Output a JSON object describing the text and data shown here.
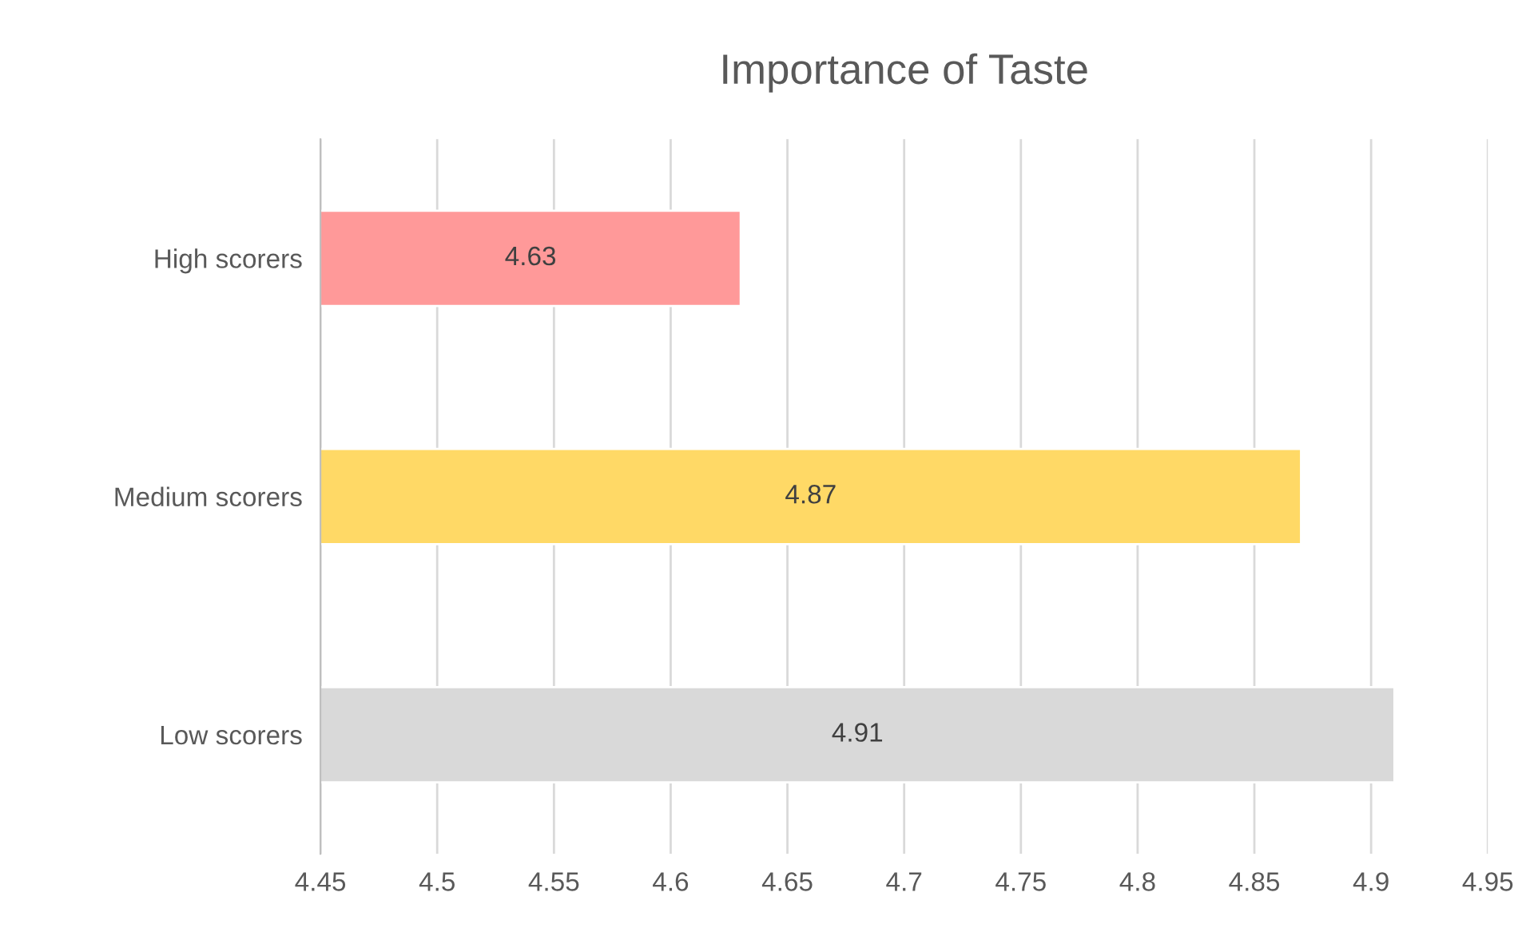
{
  "chart_data": {
    "type": "bar",
    "orientation": "horizontal",
    "title": "Importance of Taste",
    "categories": [
      "High scorers",
      "Medium scorers",
      "Low scorers"
    ],
    "values": [
      4.63,
      4.87,
      4.91
    ],
    "colors": [
      "#ff9999",
      "#ffd966",
      "#d9d9d9"
    ],
    "xlim": [
      4.45,
      4.95
    ],
    "xticks": [
      4.45,
      4.5,
      4.55,
      4.6,
      4.65,
      4.7,
      4.75,
      4.8,
      4.85,
      4.9,
      4.95
    ],
    "grid": "x",
    "data_labels": true,
    "legend": false
  }
}
